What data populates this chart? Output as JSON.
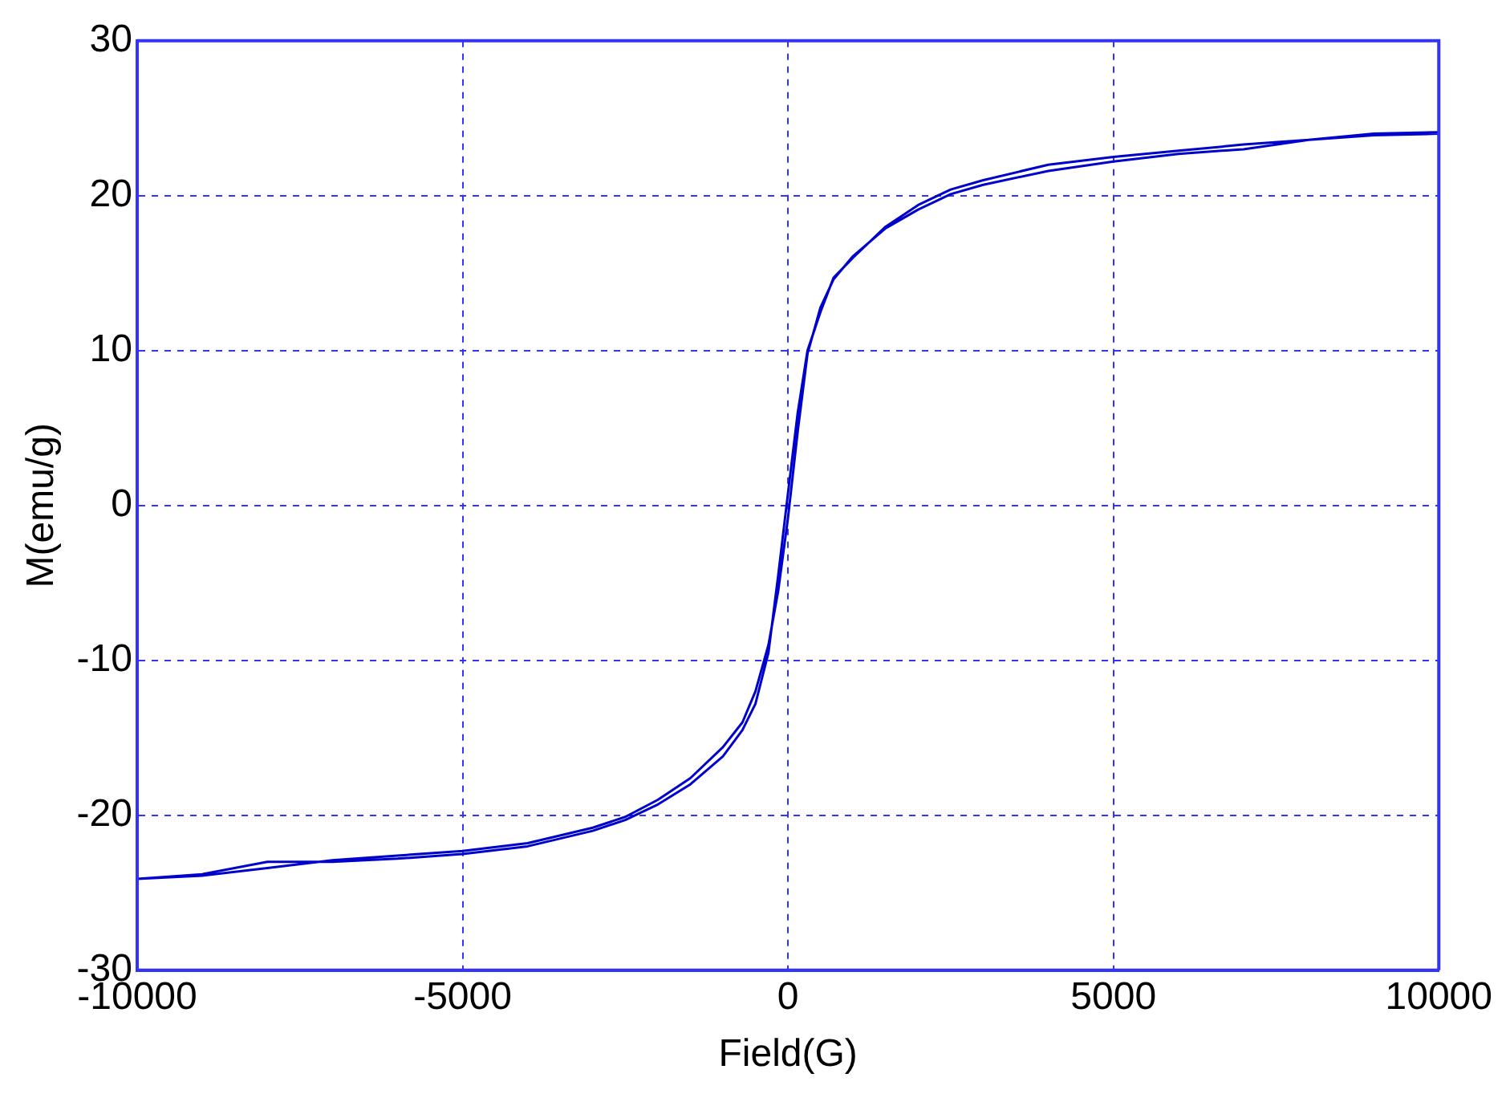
{
  "chart_data": {
    "type": "line",
    "xlabel": "Field(G)",
    "ylabel": "M(emu/g)",
    "xlim": [
      -10000,
      10000
    ],
    "xticks": [
      -10000,
      -5000,
      0,
      5000,
      10000
    ],
    "ylim": [
      -30,
      30
    ],
    "yticks": [
      -30,
      -20,
      -10,
      0,
      10,
      20,
      30
    ],
    "grid": true,
    "legend": false,
    "marker": "none",
    "line_style": "solid",
    "series": [
      {
        "color": "#0000cc",
        "x": [
          10000,
          9000,
          8000,
          7000,
          6000,
          5000,
          4000,
          3000,
          2500,
          2000,
          1500,
          1000,
          700,
          500,
          300,
          150,
          0,
          -150,
          -300,
          -500,
          -700,
          -1000,
          -1500,
          -2000,
          -2500,
          -3000,
          -4000,
          -5000,
          -6000,
          -7000,
          -8000,
          -9000,
          -10000,
          -9000,
          -8000,
          -7000,
          -6000,
          -5000,
          -4000,
          -3000,
          -2500,
          -2000,
          -1500,
          -1000,
          -700,
          -500,
          -300,
          -150,
          0,
          150,
          300,
          500,
          700,
          1000,
          1500,
          2000,
          2500,
          3000,
          4000,
          5000,
          6000,
          7000,
          8000,
          9000,
          10000
        ],
        "values": [
          24.1,
          24.0,
          23.6,
          23.3,
          22.9,
          22.5,
          22.0,
          21.0,
          20.4,
          19.4,
          18.0,
          16.0,
          14.7,
          12.5,
          10.0,
          6.0,
          0.8,
          -4.5,
          -9.5,
          -12.8,
          -14.5,
          -16.2,
          -18.0,
          -19.3,
          -20.3,
          -21.0,
          -22.0,
          -22.5,
          -22.8,
          -23.0,
          -23.0,
          -23.8,
          -24.1,
          -23.9,
          -23.4,
          -22.9,
          -22.6,
          -22.3,
          -21.8,
          -20.8,
          -20.1,
          -19.0,
          -17.6,
          -15.6,
          -14.0,
          -12.0,
          -9.0,
          -5.5,
          -0.8,
          4.8,
          9.8,
          12.8,
          14.6,
          16.1,
          17.9,
          19.1,
          20.1,
          20.7,
          21.6,
          22.2,
          22.7,
          23.0,
          23.6,
          23.9,
          24.0
        ]
      }
    ]
  }
}
